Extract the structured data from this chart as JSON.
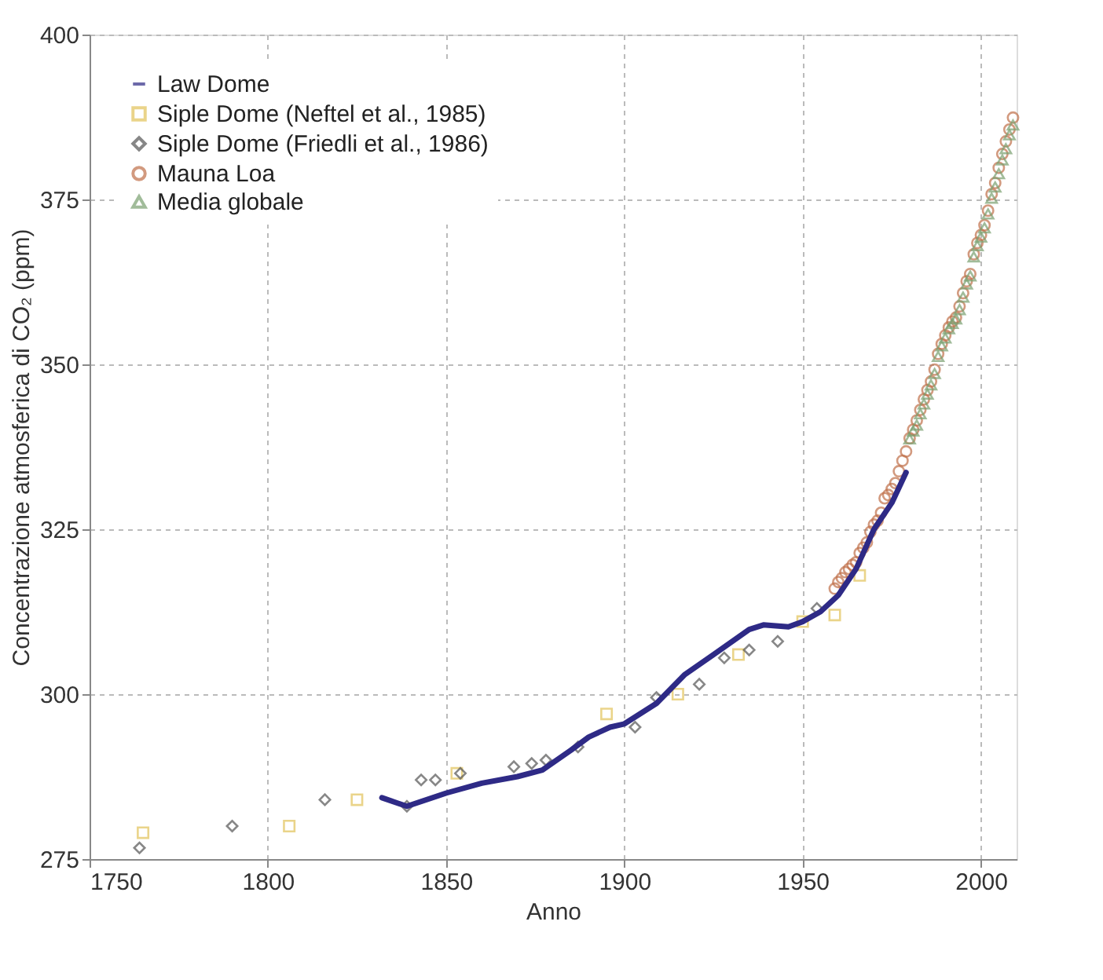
{
  "chart_data": {
    "type": "scatter",
    "xlabel": "Anno",
    "ylabel": "Concentrazione atmosferica di CO₂ (ppm)",
    "xlim": [
      1750,
      2010
    ],
    "ylim": [
      275,
      400
    ],
    "xticks": [
      1750,
      1800,
      1850,
      1900,
      1950,
      2000
    ],
    "yticks": [
      275,
      300,
      325,
      350,
      375,
      400
    ],
    "grid": true,
    "legend": "top left",
    "series": [
      {
        "name": "Law Dome",
        "type": "line",
        "color": "#2e2a86",
        "marker": "none",
        "line_style": "solid",
        "x": [
          1832,
          1839,
          1850,
          1860,
          1870,
          1877,
          1885,
          1890,
          1896,
          1900,
          1909,
          1917,
          1925,
          1935,
          1939,
          1946,
          1950,
          1955,
          1960,
          1965,
          1970,
          1975,
          1979
        ],
        "values": [
          284.3,
          283,
          285,
          286.5,
          287.5,
          288.5,
          291.5,
          293.5,
          295,
          295.5,
          298.6,
          303,
          306,
          309.8,
          310.5,
          310.2,
          311,
          312.5,
          315,
          319,
          325,
          329,
          333.6
        ]
      },
      {
        "name": "Siple Dome (Neftel et al., 1985)",
        "type": "scatter",
        "color": "#e2c35a",
        "marker": "square",
        "x": [
          1765,
          1806,
          1825,
          1853,
          1895,
          1915,
          1932,
          1950,
          1959,
          1966
        ],
        "values": [
          279,
          280,
          284,
          288,
          297,
          300,
          306,
          311,
          312,
          318
        ]
      },
      {
        "name": "Siple Dome (Friedli et al., 1986)",
        "type": "scatter",
        "color": "#555555",
        "marker": "diamond",
        "x": [
          1764,
          1790,
          1816,
          1839,
          1843,
          1847,
          1854,
          1869,
          1874,
          1878,
          1887,
          1903,
          1909,
          1921,
          1928,
          1935,
          1943,
          1954
        ],
        "values": [
          276.7,
          280,
          284,
          283,
          287,
          287,
          288,
          289,
          289.5,
          290,
          292,
          295,
          299.5,
          301.5,
          305.5,
          306.7,
          308,
          313
        ]
      },
      {
        "name": "Mauna Loa",
        "type": "scatter",
        "color": "#c0704a",
        "marker": "circle",
        "x": [
          1959,
          1960,
          1961,
          1962,
          1963,
          1964,
          1965,
          1966,
          1967,
          1968,
          1969,
          1970,
          1971,
          1972,
          1973,
          1974,
          1975,
          1976,
          1977,
          1978,
          1979,
          1980,
          1981,
          1982,
          1983,
          1984,
          1985,
          1986,
          1987,
          1988,
          1989,
          1990,
          1991,
          1992,
          1993,
          1994,
          1995,
          1996,
          1997,
          1998,
          1999,
          2000,
          2001,
          2002,
          2003,
          2004,
          2005,
          2006,
          2007,
          2008,
          2009
        ],
        "values": [
          316,
          317,
          317.6,
          318.5,
          319,
          319.6,
          320,
          321.4,
          322.2,
          323,
          324.6,
          325.7,
          326.3,
          327.5,
          329.7,
          330.2,
          331.1,
          332,
          333.8,
          335.4,
          336.8,
          338.8,
          340.1,
          341.5,
          343.1,
          344.7,
          346.1,
          347.4,
          349.2,
          351.6,
          353.1,
          354.4,
          355.6,
          356.5,
          357.1,
          358.8,
          360.8,
          362.6,
          363.7,
          366.7,
          368.4,
          369.6,
          371.1,
          373.3,
          375.8,
          377.5,
          379.8,
          381.9,
          383.8,
          385.6,
          387.4
        ]
      },
      {
        "name": "Media globale",
        "type": "scatter",
        "color": "#7aa070",
        "marker": "triangle",
        "x": [
          1980,
          1981,
          1982,
          1983,
          1984,
          1985,
          1986,
          1987,
          1988,
          1989,
          1990,
          1991,
          1992,
          1993,
          1994,
          1995,
          1996,
          1997,
          1998,
          1999,
          2000,
          2001,
          2002,
          2003,
          2004,
          2005,
          2006,
          2007,
          2008,
          2009
        ],
        "values": [
          338.7,
          339.9,
          340.8,
          342.5,
          344,
          345.5,
          346.9,
          348.6,
          351.2,
          352.8,
          354,
          355.4,
          356.2,
          356.9,
          358.3,
          360.2,
          362.2,
          363.4,
          366.3,
          368,
          369.3,
          370.7,
          372.8,
          375.2,
          376.9,
          378.9,
          381,
          382.7,
          384.8,
          386.3
        ]
      }
    ]
  }
}
